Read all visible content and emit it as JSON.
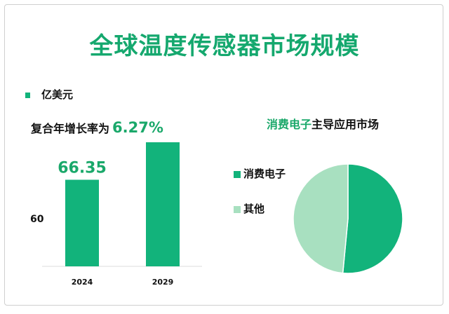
{
  "title": "全球温度传感器市场规模",
  "unit_label": "亿美元",
  "cagr": {
    "label": "复合年增长率为",
    "value": "6.27%"
  },
  "pie_title": {
    "highlight": "消费电子",
    "rest": "主导应用市场"
  },
  "colors": {
    "primary": "#12b37b",
    "light": "#a8e0c0",
    "title": "#15a86e"
  },
  "chart_data": [
    {
      "type": "bar",
      "title": "全球温度传感器市场规模",
      "ylabel": "亿美元",
      "categories": [
        "2024",
        "2029"
      ],
      "values": [
        66.35,
        89.9
      ],
      "data_labels": [
        "66.35",
        null
      ],
      "y_tick_labels": [
        "60"
      ],
      "ylim": [
        12,
        100
      ],
      "grid": false
    },
    {
      "type": "pie",
      "title": "消费电子主导应用市场",
      "labels": [
        "消费电子",
        "其他"
      ],
      "values": [
        51.5,
        48.5
      ],
      "legend": "left"
    }
  ]
}
